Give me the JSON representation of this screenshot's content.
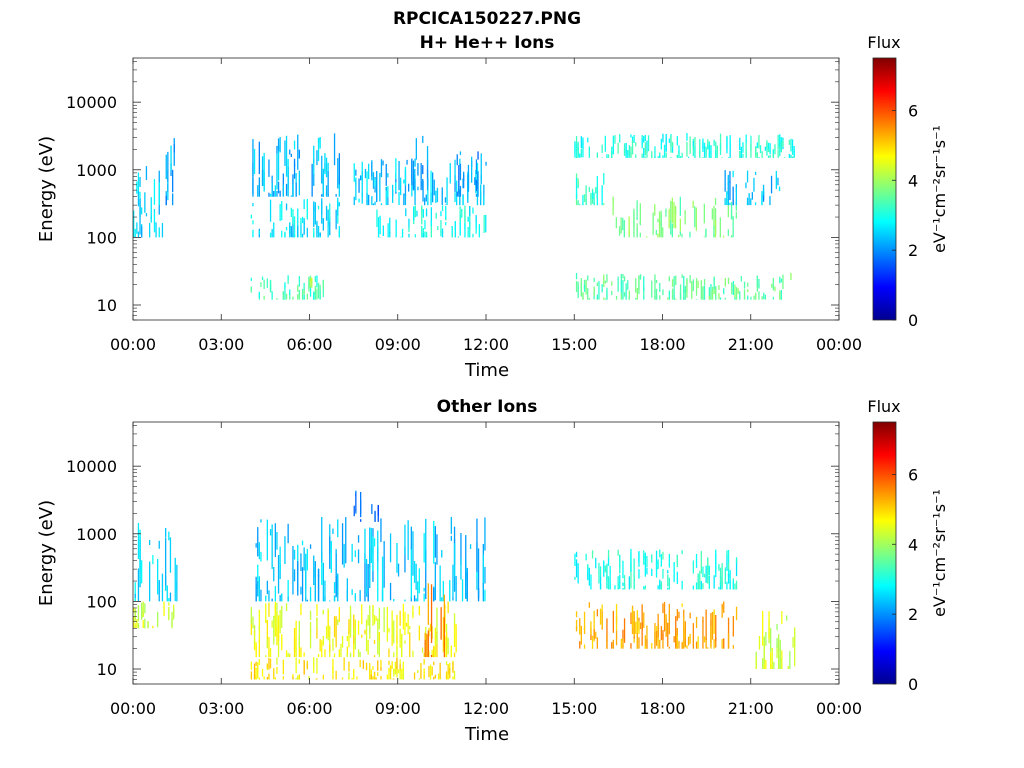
{
  "figure": {
    "filename": "RPCICA150227.PNG"
  },
  "colorbar": {
    "label": "Flux",
    "units": "eV⁻¹cm⁻²sr⁻¹s⁻¹",
    "ticks": [
      "0",
      "2",
      "4",
      "6"
    ],
    "range": [
      0,
      7.5
    ],
    "colormap": "jet"
  },
  "chart_data": [
    {
      "type": "heatmap",
      "title": "H+ He++ Ions",
      "xlabel": "Time",
      "ylabel": "Energy (eV)",
      "x_ticks": [
        "00:00",
        "03:00",
        "06:00",
        "09:00",
        "12:00",
        "15:00",
        "18:00",
        "21:00",
        "00:00"
      ],
      "x_range_hours": [
        0,
        24
      ],
      "y_ticks": [
        "10",
        "100",
        "1000",
        "10000"
      ],
      "y_scale": "log",
      "y_range": [
        6,
        45000
      ],
      "regions": [
        {
          "t": [
            0.0,
            1.0
          ],
          "e": [
            100,
            1200
          ],
          "flux": 2.5
        },
        {
          "t": [
            1.0,
            1.4
          ],
          "e": [
            300,
            3000
          ],
          "flux": 2.2
        },
        {
          "t": [
            4.0,
            7.0
          ],
          "e": [
            400,
            3500
          ],
          "flux": 2.3
        },
        {
          "t": [
            4.0,
            7.0
          ],
          "e": [
            100,
            400
          ],
          "flux": 2.6
        },
        {
          "t": [
            4.0,
            6.5
          ],
          "e": [
            12,
            28
          ],
          "flux": 3.3
        },
        {
          "t": [
            6.0,
            6.2
          ],
          "e": [
            18,
            28
          ],
          "flux": 4.1
        },
        {
          "t": [
            7.5,
            12.0
          ],
          "e": [
            300,
            1500
          ],
          "flux": 2.4
        },
        {
          "t": [
            8.0,
            12.0
          ],
          "e": [
            100,
            300
          ],
          "flux": 2.9
        },
        {
          "t": [
            9.5,
            10.0
          ],
          "e": [
            500,
            3500
          ],
          "flux": 2.0
        },
        {
          "t": [
            11.0,
            12.0
          ],
          "e": [
            400,
            2000
          ],
          "flux": 2.0
        },
        {
          "t": [
            15.0,
            22.5
          ],
          "e": [
            1500,
            3500
          ],
          "flux": 3.0
        },
        {
          "t": [
            15.0,
            16.0
          ],
          "e": [
            300,
            900
          ],
          "flux": 3.2
        },
        {
          "t": [
            16.3,
            20.5
          ],
          "e": [
            100,
            400
          ],
          "flux": 3.7
        },
        {
          "t": [
            15.0,
            22.5
          ],
          "e": [
            12,
            30
          ],
          "flux": 3.5
        },
        {
          "t": [
            20.0,
            22.0
          ],
          "e": [
            300,
            1000
          ],
          "flux": 2.3
        }
      ]
    },
    {
      "type": "heatmap",
      "title": "Other Ions",
      "xlabel": "Time",
      "ylabel": "Energy (eV)",
      "x_ticks": [
        "00:00",
        "03:00",
        "06:00",
        "09:00",
        "12:00",
        "15:00",
        "18:00",
        "21:00",
        "00:00"
      ],
      "x_range_hours": [
        0,
        24
      ],
      "y_ticks": [
        "10",
        "100",
        "1000",
        "10000"
      ],
      "y_scale": "log",
      "y_range": [
        6,
        45000
      ],
      "regions": [
        {
          "t": [
            0.0,
            1.5
          ],
          "e": [
            100,
            1500
          ],
          "flux": 2.6
        },
        {
          "t": [
            0.0,
            1.5
          ],
          "e": [
            40,
            100
          ],
          "flux": 4.4
        },
        {
          "t": [
            4.0,
            12.0
          ],
          "e": [
            100,
            1800
          ],
          "flux": 2.4
        },
        {
          "t": [
            4.0,
            11.0
          ],
          "e": [
            15,
            100
          ],
          "flux": 4.6
        },
        {
          "t": [
            4.0,
            11.0
          ],
          "e": [
            7,
            15
          ],
          "flux": 4.8
        },
        {
          "t": [
            9.8,
            10.6
          ],
          "e": [
            15,
            300
          ],
          "flux": 5.6
        },
        {
          "t": [
            7.5,
            8.5
          ],
          "e": [
            1500,
            4500
          ],
          "flux": 1.8
        },
        {
          "t": [
            15.0,
            20.5
          ],
          "e": [
            150,
            600
          ],
          "flux": 3.0
        },
        {
          "t": [
            15.0,
            20.5
          ],
          "e": [
            20,
            100
          ],
          "flux": 5.3
        },
        {
          "t": [
            21.0,
            22.5
          ],
          "e": [
            10,
            80
          ],
          "flux": 4.3
        }
      ]
    }
  ]
}
